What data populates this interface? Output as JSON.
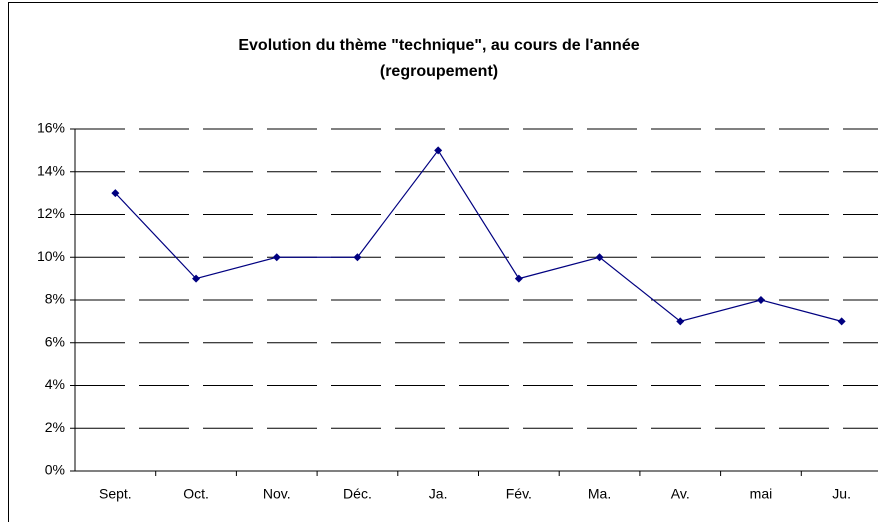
{
  "chart_data": {
    "type": "line",
    "title": [
      "Evolution du thème \"technique\", au cours de l'année",
      "(regroupement)"
    ],
    "categories": [
      "Sept.",
      "Oct.",
      "Nov.",
      "Déc.",
      "Ja.",
      "Fév.",
      "Ma.",
      "Av.",
      "mai",
      "Ju."
    ],
    "series": [
      {
        "name": "technique",
        "color": "#000080",
        "values": [
          13,
          9,
          10,
          10,
          15,
          9,
          10,
          7,
          8,
          7
        ]
      }
    ],
    "ylim": [
      0,
      16
    ],
    "yticks": [
      {
        "value": 0,
        "label": "0%"
      },
      {
        "value": 2,
        "label": "2%"
      },
      {
        "value": 4,
        "label": "4%"
      },
      {
        "value": 6,
        "label": "6%"
      },
      {
        "value": 8,
        "label": "8%"
      },
      {
        "value": 10,
        "label": "10%"
      },
      {
        "value": 12,
        "label": "12%"
      },
      {
        "value": 14,
        "label": "14%"
      },
      {
        "value": 16,
        "label": "16%"
      }
    ],
    "grid": true
  }
}
